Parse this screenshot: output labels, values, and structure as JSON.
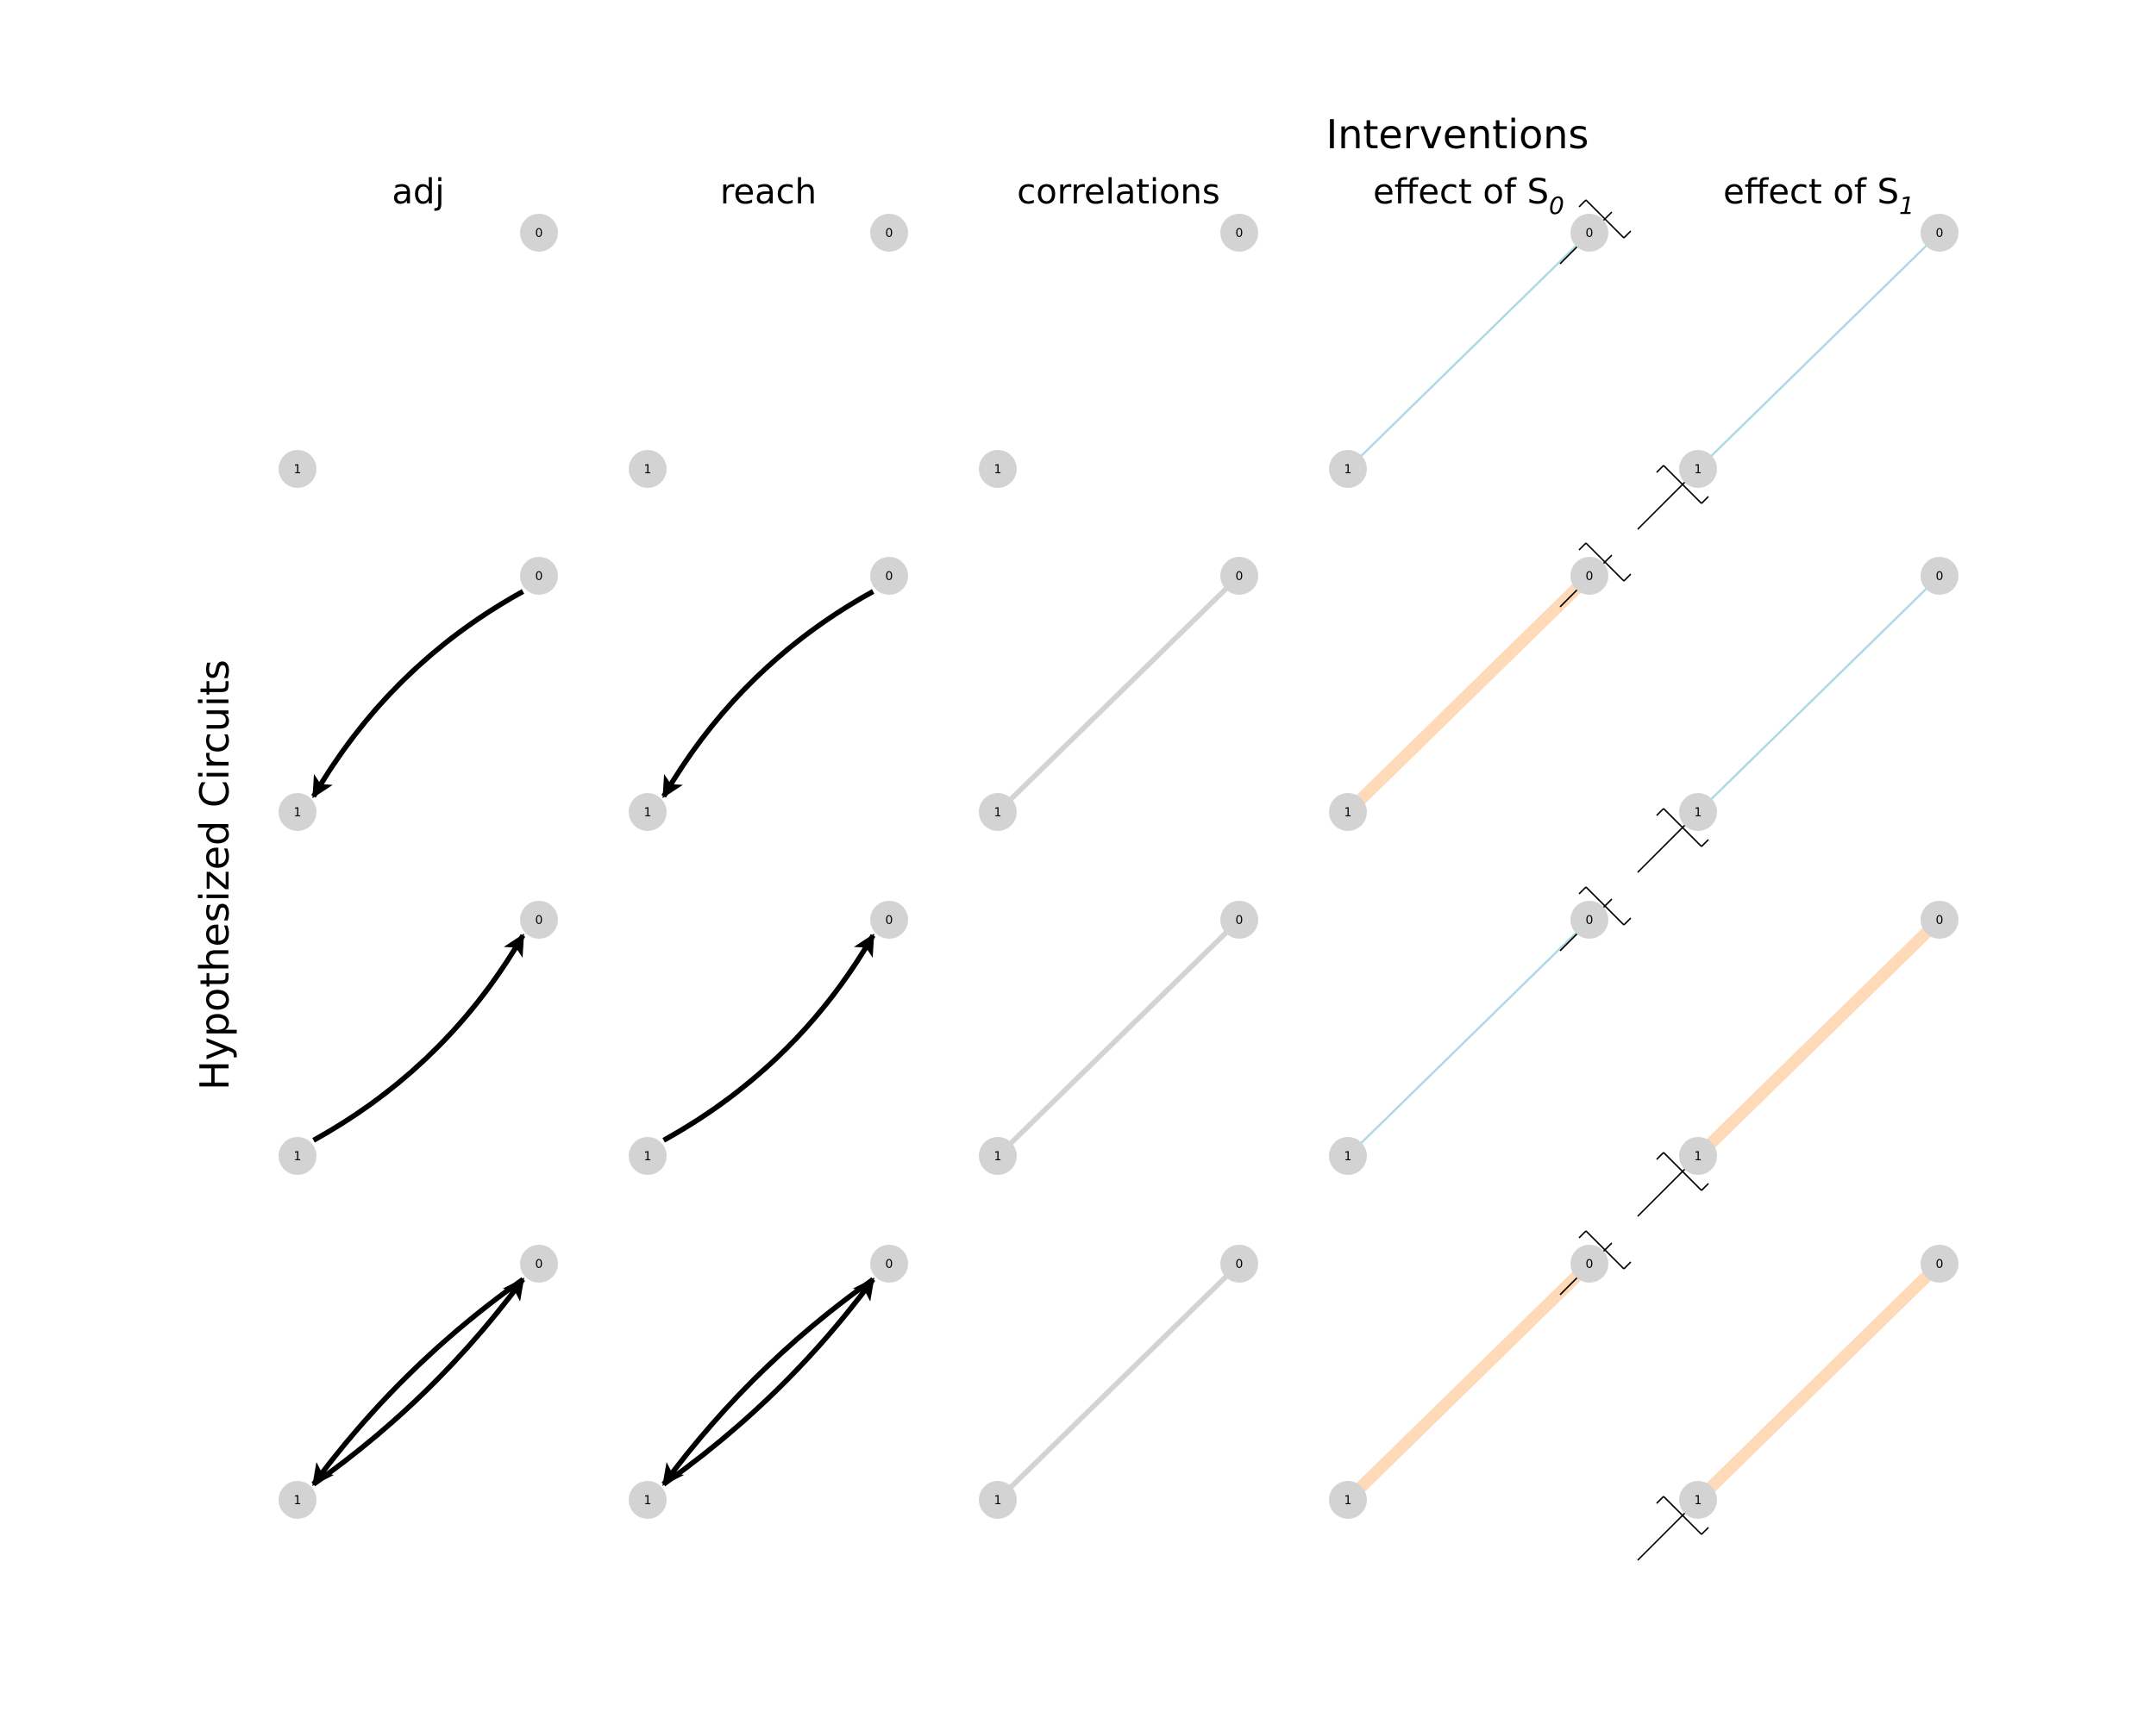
{
  "figure": {
    "title": "Interventions",
    "ylabel": "Hypothesized Circuits",
    "columns": [
      {
        "id": "adj",
        "label": "adj",
        "subscript": ""
      },
      {
        "id": "reach",
        "label": "reach",
        "subscript": ""
      },
      {
        "id": "corr",
        "label": "correlations",
        "subscript": ""
      },
      {
        "id": "s0",
        "label": "effect of S",
        "subscript": "0"
      },
      {
        "id": "s1",
        "label": "effect of S",
        "subscript": "1"
      }
    ]
  },
  "colors": {
    "node": "#d3d3d3",
    "arrow": "#000000",
    "correlation": "#d3d3d3",
    "weak_effect": "#add8e6",
    "strong_effect": "#ffdab9",
    "cut_marker": "#000000"
  },
  "node_labels": [
    "0",
    "1"
  ],
  "rows": [
    {
      "adj": [],
      "reach": [],
      "corr": "none",
      "s0": {
        "effect": "weak",
        "cut": "0"
      },
      "s1": {
        "effect": "weak",
        "cut": "1"
      }
    },
    {
      "adj": [
        "0->1"
      ],
      "reach": [
        "0->1"
      ],
      "corr": "yes",
      "s0": {
        "effect": "strong",
        "cut": "0"
      },
      "s1": {
        "effect": "weak",
        "cut": "1"
      }
    },
    {
      "adj": [
        "1->0"
      ],
      "reach": [
        "1->0"
      ],
      "corr": "yes",
      "s0": {
        "effect": "weak",
        "cut": "0"
      },
      "s1": {
        "effect": "strong",
        "cut": "1"
      }
    },
    {
      "adj": [
        "0->1",
        "1->0"
      ],
      "reach": [
        "0->1",
        "1->0"
      ],
      "corr": "yes",
      "s0": {
        "effect": "strong",
        "cut": "0"
      },
      "s1": {
        "effect": "strong",
        "cut": "1"
      }
    }
  ]
}
